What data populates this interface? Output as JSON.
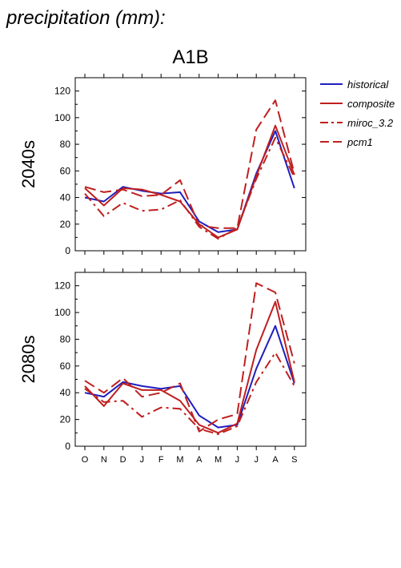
{
  "figure": {
    "heading": "precipitation (mm):",
    "scenario": "A1B"
  },
  "legend": {
    "placement": "right",
    "entries": [
      {
        "name": "historical",
        "color": "#1f1fbf",
        "dash": "solid"
      },
      {
        "name": "composite",
        "color": "#bf1f1f",
        "dash": "solid"
      },
      {
        "name": "miroc_3.2",
        "color": "#bf1f1f",
        "dash": "dashdot"
      },
      {
        "name": "pcm1",
        "color": "#bf1f1f",
        "dash": "dash"
      }
    ]
  },
  "chart_data": [
    {
      "type": "line",
      "panel_label": "2040s",
      "categories": [
        "O",
        "N",
        "D",
        "J",
        "F",
        "M",
        "A",
        "M",
        "J",
        "J",
        "A",
        "S"
      ],
      "ylim": [
        0,
        130
      ],
      "yticks": [
        0,
        20,
        40,
        60,
        80,
        100,
        120
      ],
      "grid": false,
      "series": [
        {
          "name": "historical",
          "values": [
            40,
            37,
            48,
            45,
            43,
            44,
            22,
            14,
            16,
            58,
            90,
            47
          ]
        },
        {
          "name": "composite",
          "values": [
            47,
            34,
            47,
            46,
            42,
            37,
            20,
            10,
            16,
            56,
            94,
            57
          ]
        },
        {
          "name": "miroc_3.2",
          "values": [
            43,
            26,
            36,
            30,
            31,
            38,
            18,
            9,
            17,
            54,
            85,
            55
          ]
        },
        {
          "name": "pcm1",
          "values": [
            48,
            44,
            46,
            41,
            42,
            53,
            19,
            17,
            17,
            91,
            113,
            58
          ]
        }
      ]
    },
    {
      "type": "line",
      "panel_label": "2080s",
      "categories": [
        "O",
        "N",
        "D",
        "J",
        "F",
        "M",
        "A",
        "M",
        "J",
        "J",
        "A",
        "S"
      ],
      "ylim": [
        0,
        130
      ],
      "yticks": [
        0,
        20,
        40,
        60,
        80,
        100,
        120
      ],
      "grid": false,
      "series": [
        {
          "name": "historical",
          "values": [
            40,
            37,
            48,
            45,
            43,
            45,
            23,
            14,
            16,
            58,
            90,
            47
          ]
        },
        {
          "name": "composite",
          "values": [
            45,
            30,
            47,
            42,
            42,
            34,
            16,
            10,
            17,
            72,
            108,
            48
          ]
        },
        {
          "name": "miroc_3.2",
          "values": [
            43,
            33,
            34,
            22,
            29,
            28,
            13,
            9,
            15,
            48,
            70,
            45
          ]
        },
        {
          "name": "pcm1",
          "values": [
            49,
            40,
            51,
            37,
            40,
            47,
            11,
            20,
            24,
            122,
            115,
            62
          ]
        }
      ]
    }
  ]
}
